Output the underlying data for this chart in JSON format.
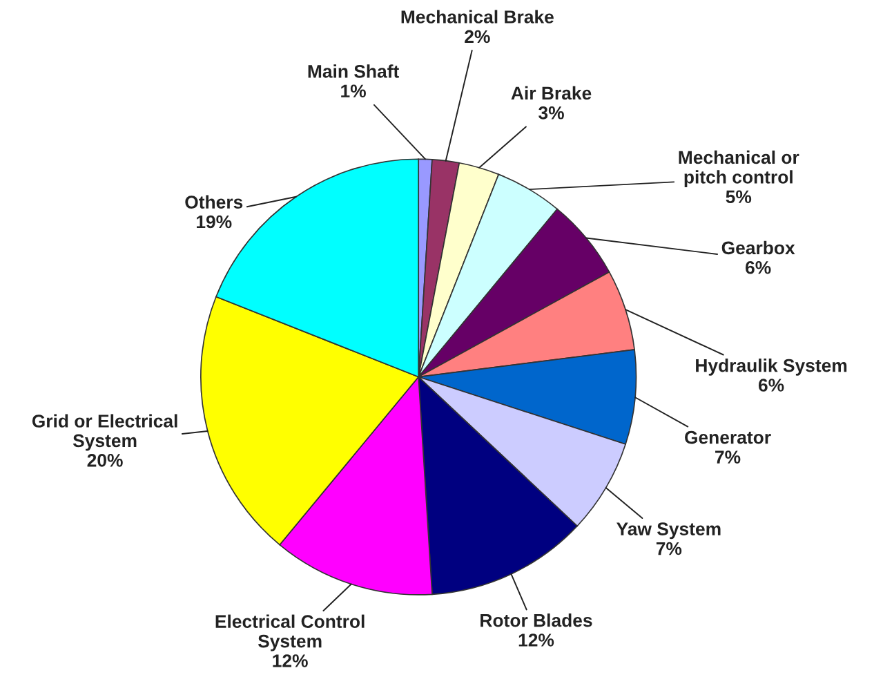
{
  "chart_data": {
    "type": "pie",
    "categories": [
      "Main Shaft",
      "Mechanical Brake",
      "Air Brake",
      "Mechanical or\npitch control",
      "Gearbox",
      "Hydraulik System",
      "Generator",
      "Yaw System",
      "Rotor Blades",
      "Electrical Control\nSystem",
      "Grid or Electrical\nSystem",
      "Others"
    ],
    "values": [
      1,
      2,
      3,
      5,
      6,
      6,
      7,
      7,
      12,
      12,
      20,
      19
    ],
    "value_labels": [
      "1%",
      "2%",
      "3%",
      "5%",
      "6%",
      "6%",
      "7%",
      "7%",
      "12%",
      "12%",
      "20%",
      "19%"
    ],
    "colors": [
      "#9999ff",
      "#993366",
      "#ffffcc",
      "#ccffff",
      "#660066",
      "#ff8080",
      "#0066cc",
      "#ccccff",
      "#000080",
      "#ff00ff",
      "#ffff00",
      "#00ffff"
    ],
    "legend": false
  }
}
